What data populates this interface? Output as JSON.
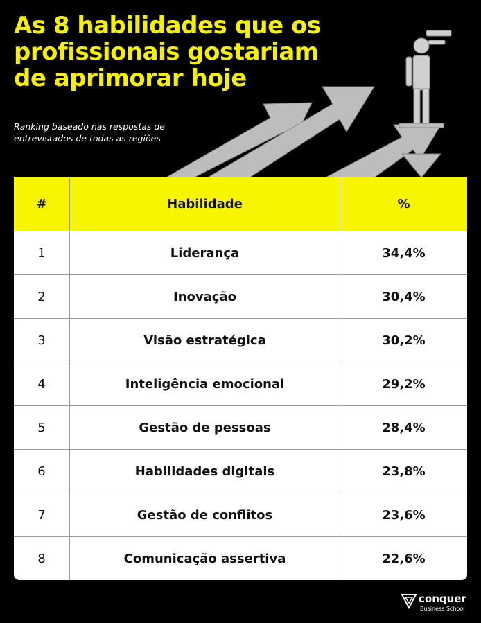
{
  "header": {
    "title": [
      "As 8 habilidades que os",
      "profissionais gostariam",
      "de aprimorar hoje"
    ],
    "subtitle": [
      "Ranking baseado nas respostas de",
      "entrevistados de todas as regiões"
    ]
  },
  "table": {
    "columns": [
      "#",
      "Habilidade",
      "%"
    ],
    "rows": [
      [
        "1",
        "Liderança",
        "34,4%"
      ],
      [
        "2",
        "Inovação",
        "30,4%"
      ],
      [
        "3",
        "Visão estratégica",
        "30,2%"
      ],
      [
        "4",
        "Inteligência emocional",
        "29,2%"
      ],
      [
        "5",
        "Gestão de pessoas",
        "28,4%"
      ],
      [
        "6",
        "Habilidades digitais",
        "23,8%"
      ],
      [
        "7",
        "Gestão de conflitos",
        "23,6%"
      ],
      [
        "8",
        "Comunicação assertiva",
        "22,6%"
      ]
    ]
  },
  "logo": {
    "name": "conquer",
    "tagline": "Business School"
  }
}
